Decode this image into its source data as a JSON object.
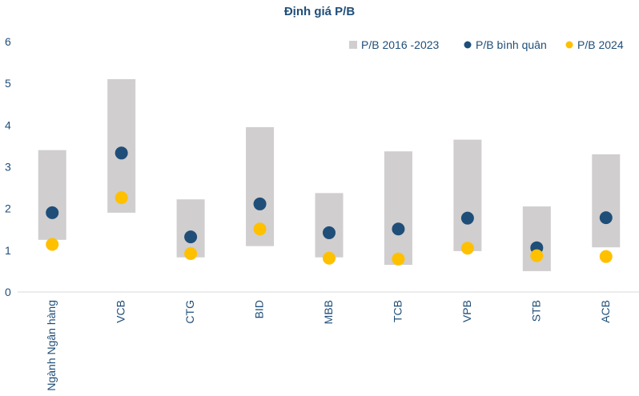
{
  "chart_data": {
    "type": "range-dot",
    "title": "Định giá P/B",
    "xlabel": "",
    "ylabel": "",
    "ylim": [
      0,
      6
    ],
    "yticks": [
      "0",
      "1",
      "2",
      "3",
      "4",
      "5",
      "6"
    ],
    "categories": [
      "Ngành Ngân hàng",
      "VCB",
      "CTG",
      "BID",
      "MBB",
      "TCB",
      "VPB",
      "STB",
      "ACB"
    ],
    "legend_position": "top-right",
    "grid": false,
    "series": [
      {
        "name": "P/B 2016 -2023",
        "kind": "range",
        "color": "#d0cece",
        "low": [
          1.25,
          1.9,
          0.83,
          1.1,
          0.83,
          0.65,
          0.98,
          0.5,
          1.07
        ],
        "high": [
          3.4,
          5.1,
          2.22,
          3.95,
          2.37,
          3.37,
          3.65,
          2.05,
          3.3
        ]
      },
      {
        "name": "P/B bình quân",
        "kind": "dot",
        "color": "#1f4e79",
        "values": [
          1.9,
          3.33,
          1.32,
          2.11,
          1.42,
          1.51,
          1.77,
          1.06,
          1.78
        ]
      },
      {
        "name": "P/B 2024",
        "kind": "dot",
        "color": "#ffc000",
        "values": [
          1.14,
          2.26,
          0.92,
          1.51,
          0.81,
          0.79,
          1.05,
          0.87,
          0.85
        ]
      }
    ]
  }
}
